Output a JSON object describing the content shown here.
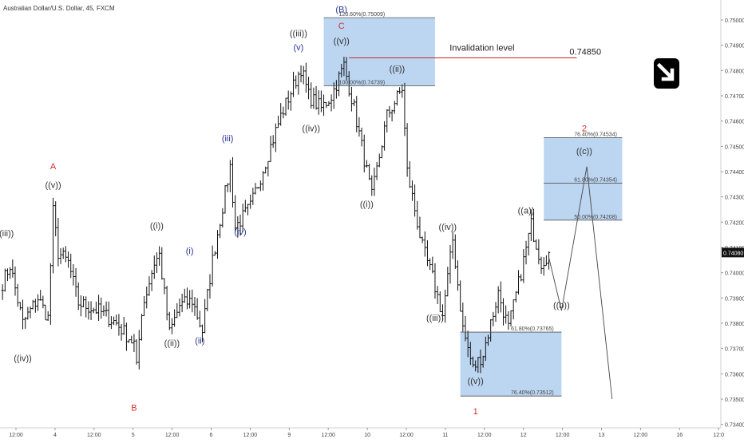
{
  "chart_data": {
    "type": "candlestick",
    "title": "Australian Dollar/U.S. Dollar, 45, FXCM",
    "instrument": "Australian Dollar/U.S. Dollar",
    "timeframe": "45",
    "source": "FXCM",
    "ylim": [
      0.7349,
      0.7504
    ],
    "y_ticks": [
      "0.75000",
      "0.74900",
      "0.74800",
      "0.74700",
      "0.74600",
      "0.74500",
      "0.74400",
      "0.74300",
      "0.74200",
      "0.74100",
      "0.74000",
      "0.73900",
      "0.73800",
      "0.73700",
      "0.73600",
      "0.73500",
      "0.73400"
    ],
    "x_ticks": [
      "12:00",
      "4",
      "12:00",
      "5",
      "12:00",
      "6",
      "12:00",
      "9",
      "12:00",
      "10",
      "12:00",
      "11",
      "12:00",
      "12",
      "12:00",
      "13",
      "12:00",
      "16",
      "12:0"
    ],
    "last_price": "0.74080",
    "price_path": [
      {
        "bar": 0,
        "price": 0.7396
      },
      {
        "bar": 3,
        "price": 0.7403
      },
      {
        "bar": 8,
        "price": 0.738
      },
      {
        "bar": 14,
        "price": 0.739
      },
      {
        "bar": 18,
        "price": 0.7382
      },
      {
        "bar": 20,
        "price": 0.7424
      },
      {
        "bar": 22,
        "price": 0.7408
      },
      {
        "bar": 26,
        "price": 0.7404
      },
      {
        "bar": 30,
        "price": 0.7388
      },
      {
        "bar": 38,
        "price": 0.7385
      },
      {
        "bar": 45,
        "price": 0.738
      },
      {
        "bar": 52,
        "price": 0.7372
      },
      {
        "bar": 53,
        "price": 0.7362
      },
      {
        "bar": 55,
        "price": 0.7385
      },
      {
        "bar": 60,
        "price": 0.7404
      },
      {
        "bar": 62,
        "price": 0.7407
      },
      {
        "bar": 66,
        "price": 0.7376
      },
      {
        "bar": 70,
        "price": 0.7387
      },
      {
        "bar": 75,
        "price": 0.7389
      },
      {
        "bar": 79,
        "price": 0.7377
      },
      {
        "bar": 83,
        "price": 0.7405
      },
      {
        "bar": 90,
        "price": 0.7442
      },
      {
        "bar": 92,
        "price": 0.7418
      },
      {
        "bar": 98,
        "price": 0.7426
      },
      {
        "bar": 104,
        "price": 0.7444
      },
      {
        "bar": 110,
        "price": 0.7462
      },
      {
        "bar": 118,
        "price": 0.7481
      },
      {
        "bar": 121,
        "price": 0.747
      },
      {
        "bar": 126,
        "price": 0.7465
      },
      {
        "bar": 130,
        "price": 0.747
      },
      {
        "bar": 135,
        "price": 0.7482
      },
      {
        "bar": 139,
        "price": 0.7465
      },
      {
        "bar": 144,
        "price": 0.744
      },
      {
        "bar": 146,
        "price": 0.743
      },
      {
        "bar": 152,
        "price": 0.7462
      },
      {
        "bar": 158,
        "price": 0.7473
      },
      {
        "bar": 160,
        "price": 0.744
      },
      {
        "bar": 166,
        "price": 0.741
      },
      {
        "bar": 170,
        "price": 0.7398
      },
      {
        "bar": 174,
        "price": 0.7383
      },
      {
        "bar": 178,
        "price": 0.7413
      },
      {
        "bar": 182,
        "price": 0.7378
      },
      {
        "bar": 186,
        "price": 0.7362
      },
      {
        "bar": 190,
        "price": 0.7368
      },
      {
        "bar": 196,
        "price": 0.7392
      },
      {
        "bar": 200,
        "price": 0.7378
      },
      {
        "bar": 205,
        "price": 0.74
      },
      {
        "bar": 209,
        "price": 0.7419
      },
      {
        "bar": 213,
        "price": 0.7404
      },
      {
        "bar": 216,
        "price": 0.7408
      }
    ],
    "projection": [
      {
        "x_bar": 217,
        "price": 0.7406
      },
      {
        "x_bar": 222,
        "price": 0.7385
      },
      {
        "x_bar": 232,
        "price": 0.7442
      },
      {
        "x_bar": 242,
        "price": 0.735
      }
    ],
    "boxes": [
      {
        "name": "(B) extension zone",
        "price_top": 0.75009,
        "price_bottom": 0.74739,
        "bar_from": 128,
        "bar_to": 172
      },
      {
        "name": "wave 1 target zone",
        "price_top": 0.73765,
        "price_bottom": 0.73512,
        "bar_from": 182,
        "bar_to": 222
      },
      {
        "name": "wave 2 target zone",
        "price_top": 0.74534,
        "price_bottom": 0.74208,
        "bar_from": 215,
        "bar_to": 246
      }
    ],
    "fib_levels": [
      {
        "text": "123.60%(0.75009)",
        "price": 0.75009,
        "bar_from": 128,
        "bar_to": 172,
        "label_bar": 134
      },
      {
        "text": "100.00%(0.74739)",
        "price": 0.74739,
        "bar_from": 128,
        "bar_to": 172,
        "label_bar": 134
      },
      {
        "text": "61.80%(0.73765)",
        "price": 0.73765,
        "bar_from": 182,
        "bar_to": 222,
        "label_bar": 202
      },
      {
        "text": "76.40%(0.73512)",
        "price": 0.73512,
        "bar_from": 182,
        "bar_to": 222,
        "label_bar": 202
      },
      {
        "text": "76.40%(0.74534)",
        "price": 0.74534,
        "bar_from": 215,
        "bar_to": 246,
        "label_bar": 227
      },
      {
        "text": "61.80%(0.74354)",
        "price": 0.74354,
        "bar_from": 215,
        "bar_to": 246,
        "label_bar": 227
      },
      {
        "text": "50.00%(0.74208)",
        "price": 0.74208,
        "bar_from": 215,
        "bar_to": 246,
        "label_bar": 227
      }
    ],
    "invalidation": {
      "label": "Invalidation level",
      "value": "0.74850",
      "price": 0.7485,
      "bar_from": 138,
      "bar_to": 228
    },
    "wave_labels": [
      {
        "text": "((iii))",
        "bar": 2,
        "price": 0.74145,
        "color": "#333333"
      },
      {
        "text": "((iv))",
        "bar": 9,
        "price": 0.7365,
        "color": "#333333"
      },
      {
        "text": "A",
        "bar": 21,
        "price": 0.7441,
        "color": "#d32f2f"
      },
      {
        "text": "((v))",
        "bar": 21,
        "price": 0.74335,
        "color": "#333333"
      },
      {
        "text": "B",
        "bar": 53,
        "price": 0.73455,
        "color": "#d32f2f"
      },
      {
        "text": "((i))",
        "bar": 62,
        "price": 0.74175,
        "color": "#333333"
      },
      {
        "text": "(i)",
        "bar": 75,
        "price": 0.74075,
        "color": "#283593"
      },
      {
        "text": "((ii))",
        "bar": 68,
        "price": 0.7371,
        "color": "#333333"
      },
      {
        "text": "(ii)",
        "bar": 79,
        "price": 0.7372,
        "color": "#283593"
      },
      {
        "text": "(iii)",
        "bar": 90,
        "price": 0.7452,
        "color": "#283593"
      },
      {
        "text": "(iv)",
        "bar": 95,
        "price": 0.7415,
        "color": "#283593"
      },
      {
        "text": "((iii))",
        "bar": 118,
        "price": 0.74935,
        "color": "#333333"
      },
      {
        "text": "(v)",
        "bar": 118,
        "price": 0.7488,
        "color": "#283593"
      },
      {
        "text": "(B)",
        "bar": 135,
        "price": 0.7503,
        "color": "#283593"
      },
      {
        "text": "C",
        "bar": 135,
        "price": 0.74965,
        "color": "#d32f2f"
      },
      {
        "text": "((v))",
        "bar": 135,
        "price": 0.74905,
        "color": "#333333"
      },
      {
        "text": "((ii))",
        "bar": 157,
        "price": 0.74795,
        "color": "#333333"
      },
      {
        "text": "((iv))",
        "bar": 123,
        "price": 0.7456,
        "color": "#333333"
      },
      {
        "text": "((i))",
        "bar": 145,
        "price": 0.7426,
        "color": "#333333"
      },
      {
        "text": "((iv))",
        "bar": 177,
        "price": 0.7417,
        "color": "#333333"
      },
      {
        "text": "((iii))",
        "bar": 172,
        "price": 0.7381,
        "color": "#333333"
      },
      {
        "text": "((v))",
        "bar": 188,
        "price": 0.7356,
        "color": "#333333"
      },
      {
        "text": "1",
        "bar": 188,
        "price": 0.7344,
        "color": "#d32f2f"
      },
      {
        "text": "((a))",
        "bar": 208,
        "price": 0.74235,
        "color": "#333333"
      },
      {
        "text": "((b))",
        "bar": 222,
        "price": 0.7386,
        "color": "#333333"
      },
      {
        "text": "2",
        "bar": 231,
        "price": 0.7456,
        "color": "#d32f2f"
      },
      {
        "text": "((c))",
        "bar": 231,
        "price": 0.7447,
        "color": "#333333"
      }
    ],
    "colors": {
      "bar": "#111111",
      "box": "#bcd6f2",
      "box_edge": "#555555",
      "invalidation": "#c62828",
      "axis_text": "#444444",
      "last_price_bg": "#111111",
      "last_price_text": "#ffffff",
      "projection": "#444444"
    },
    "grid": false
  },
  "badge": {
    "icon": "down-arrow-icon",
    "bg": "#000000",
    "fg": "#ffffff"
  }
}
